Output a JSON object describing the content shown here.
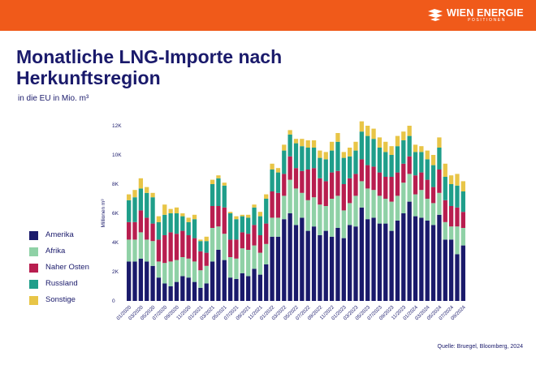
{
  "header": {
    "brand": "WIEN ENERGIE",
    "brand_sub": "POSITIONEN",
    "logo_icon": "wien-energie-logo-icon",
    "bar_color": "#f05a1a"
  },
  "title": "Monatliche LNG-Importe nach Herkunftsregion",
  "subtitle": "in die EU in Mio. m³",
  "source": "Quelle: Bruegel, Bloomberg, 2024",
  "chart_data": {
    "type": "bar",
    "stacked": true,
    "ylabel": "Millionen m³",
    "ylim": [
      0,
      12000
    ],
    "yticks": [
      0,
      2000,
      4000,
      6000,
      8000,
      10000,
      12000
    ],
    "ytick_labels": [
      "0",
      "2K",
      "4K",
      "6K",
      "8K",
      "10K",
      "12K"
    ],
    "grid": false,
    "legend_position": "left",
    "categories": [
      "01/2020",
      "02/2020",
      "03/2020",
      "04/2020",
      "05/2020",
      "06/2020",
      "07/2020",
      "08/2020",
      "09/2020",
      "10/2020",
      "11/2020",
      "12/2020",
      "01/2021",
      "02/2021",
      "03/2021",
      "04/2021",
      "05/2021",
      "06/2021",
      "07/2021",
      "08/2021",
      "09/2021",
      "10/2021",
      "11/2021",
      "12/2021",
      "01/2022",
      "02/2022",
      "03/2022",
      "04/2022",
      "05/2022",
      "06/2022",
      "07/2022",
      "08/2022",
      "09/2022",
      "10/2022",
      "11/2022",
      "12/2022",
      "01/2023",
      "02/2023",
      "03/2023",
      "04/2023",
      "05/2023",
      "06/2023",
      "07/2023",
      "08/2023",
      "09/2023",
      "10/2023",
      "11/2023",
      "12/2023",
      "01/2024",
      "02/2024",
      "03/2024",
      "04/2024",
      "05/2024",
      "06/2024",
      "07/2024",
      "08/2024",
      "09/2024"
    ],
    "xtick_labels": [
      "01/2020",
      "03/2020",
      "05/2020",
      "07/2020",
      "09/2020",
      "11/2020",
      "01/2021",
      "03/2021",
      "05/2021",
      "07/2021",
      "09/2021",
      "11/2021",
      "01/2022",
      "03/2022",
      "05/2022",
      "07/2022",
      "09/2022",
      "11/2022",
      "01/2023",
      "03/2023",
      "05/2023",
      "07/2023",
      "09/2023",
      "11/2023",
      "01/2024",
      "03/2024",
      "05/2024",
      "07/2024",
      "09/2024"
    ],
    "series": [
      {
        "name": "Amerika",
        "color": "#1a1a6b",
        "values": [
          2700,
          2700,
          2900,
          2700,
          2400,
          1600,
          1200,
          1000,
          1300,
          1700,
          1600,
          1300,
          900,
          1200,
          2700,
          3500,
          2800,
          1600,
          1500,
          1900,
          1700,
          2200,
          1800,
          2500,
          4400,
          4400,
          5600,
          6000,
          5200,
          5700,
          4800,
          5100,
          4500,
          4800,
          4400,
          5000,
          4300,
          5200,
          5100,
          6400,
          5600,
          5700,
          5300,
          5300,
          4800,
          5500,
          6000,
          6800,
          5800,
          5700,
          5500,
          5200,
          5900,
          4200,
          4200,
          3200,
          3800
        ]
      },
      {
        "name": "Afrika",
        "color": "#8fd1a6",
        "values": [
          1500,
          1500,
          1800,
          1500,
          1700,
          1100,
          1400,
          1700,
          1500,
          1300,
          1300,
          1400,
          1200,
          1200,
          2300,
          1600,
          1800,
          1400,
          1400,
          1700,
          1800,
          1600,
          1500,
          1400,
          1300,
          1300,
          1600,
          2300,
          2500,
          1700,
          2100,
          2000,
          2100,
          1700,
          2600,
          2200,
          1900,
          1500,
          2100,
          1800,
          2100,
          1900,
          1900,
          1700,
          2000,
          1700,
          2100,
          1900,
          1500,
          1900,
          1500,
          1500,
          1500,
          1200,
          900,
          1900,
          1200
        ]
      },
      {
        "name": "Naher Osten",
        "color": "#b81e4f",
        "values": [
          1200,
          1200,
          1500,
          1500,
          1200,
          1500,
          1900,
          2000,
          1800,
          1800,
          1600,
          1600,
          1300,
          900,
          1500,
          1400,
          1800,
          1200,
          1300,
          1100,
          1100,
          1400,
          1200,
          1400,
          1800,
          1700,
          1500,
          1600,
          1400,
          1500,
          2100,
          2000,
          1800,
          1700,
          1800,
          1700,
          1800,
          1700,
          1500,
          1500,
          1600,
          1600,
          1600,
          1500,
          1700,
          1600,
          1300,
          1200,
          1300,
          1200,
          1300,
          1100,
          1600,
          1500,
          1400,
          1300,
          1100
        ]
      },
      {
        "name": "Russland",
        "color": "#1f9e8a",
        "values": [
          1500,
          1700,
          1500,
          1700,
          1800,
          1200,
          1400,
          1300,
          1400,
          1000,
          900,
          1300,
          700,
          800,
          1500,
          1900,
          1500,
          1800,
          1400,
          1100,
          1100,
          1200,
          1300,
          1700,
          1500,
          1400,
          1600,
          1500,
          1700,
          1700,
          1500,
          1400,
          1400,
          1500,
          1500,
          2000,
          1800,
          1500,
          1600,
          1900,
          2000,
          1900,
          1700,
          1700,
          1500,
          1800,
          1600,
          1400,
          1600,
          1400,
          1400,
          1500,
          1500,
          1600,
          1500,
          1500,
          1400
        ]
      },
      {
        "name": "Sonstige",
        "color": "#e8c547",
        "values": [
          400,
          500,
          700,
          400,
          300,
          400,
          700,
          300,
          400,
          200,
          300,
          300,
          100,
          300,
          300,
          200,
          200,
          100,
          200,
          100,
          200,
          200,
          300,
          300,
          400,
          300,
          400,
          300,
          300,
          500,
          500,
          500,
          500,
          500,
          600,
          600,
          400,
          600,
          600,
          700,
          700,
          700,
          700,
          700,
          600,
          700,
          600,
          700,
          500,
          400,
          600,
          700,
          700,
          900,
          600,
          800,
          700
        ]
      }
    ]
  }
}
